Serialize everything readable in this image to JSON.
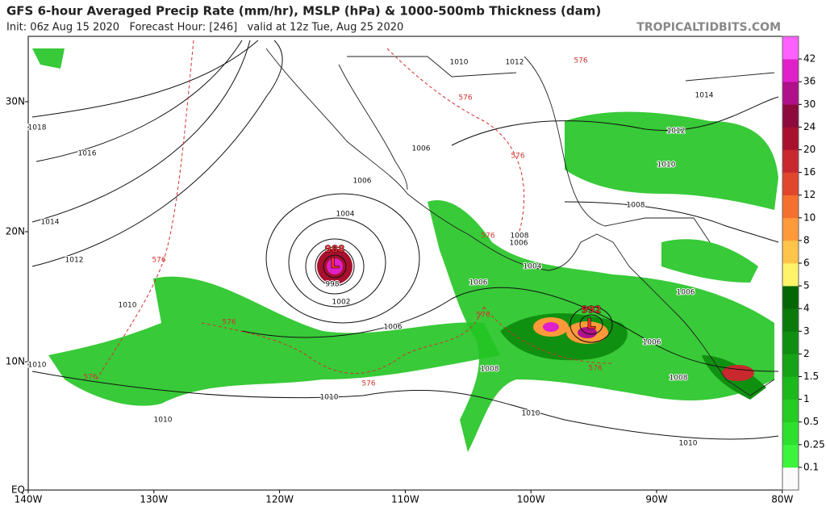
{
  "header": {
    "title": "GFS 6-hour Averaged Precip Rate (mm/hr), MSLP (hPa) & 1000-500mb Thickness (dam)",
    "subtitle": "Init: 06z Aug 15 2020   Forecast Hour: [246]   valid at 12z Tue, Aug 25 2020",
    "site": "TROPICALTIDBITS.COM"
  },
  "map": {
    "lat_labels": [
      "30N",
      "20N",
      "10N",
      "EQ"
    ],
    "lon_labels": [
      "140W",
      "130W",
      "120W",
      "110W",
      "100W",
      "90W",
      "80W"
    ],
    "isobar_labels": [
      "1018",
      "1016",
      "1014",
      "1012",
      "1010",
      "1010",
      "1010",
      "1010",
      "1010",
      "1010",
      "1006",
      "1004",
      "1002",
      "998",
      "1006",
      "1006",
      "1008",
      "1006",
      "1004",
      "1006",
      "1008",
      "1006",
      "1008",
      "1008",
      "1010",
      "1012",
      "1014",
      "1010",
      "1012",
      "1006"
    ],
    "thickness_labels": [
      "576",
      "576",
      "576",
      "576",
      "576",
      "576",
      "576",
      "576",
      "576",
      "576"
    ],
    "lows": [
      {
        "symbol": "L",
        "pressure": "988"
      },
      {
        "symbol": "L",
        "pressure": "992"
      }
    ]
  },
  "colorbar": {
    "labels": [
      "0.1",
      "0.25",
      "0.5",
      "1",
      "1.5",
      "2",
      "3",
      "4",
      "5",
      "6",
      "8",
      "10",
      "12",
      "16",
      "20",
      "24",
      "30",
      "36",
      "42"
    ],
    "colors": [
      "#fbfbfb",
      "#3cf43c",
      "#2ee02e",
      "#24cc24",
      "#1cb81c",
      "#16a316",
      "#108e10",
      "#0a7a0a",
      "#056605",
      "#fff36a",
      "#ffc44a",
      "#ff9a3a",
      "#f5702e",
      "#e0472c",
      "#c8282e",
      "#a8102e",
      "#8c0a3c",
      "#b0108a",
      "#e020c8",
      "#ff60ff"
    ]
  }
}
